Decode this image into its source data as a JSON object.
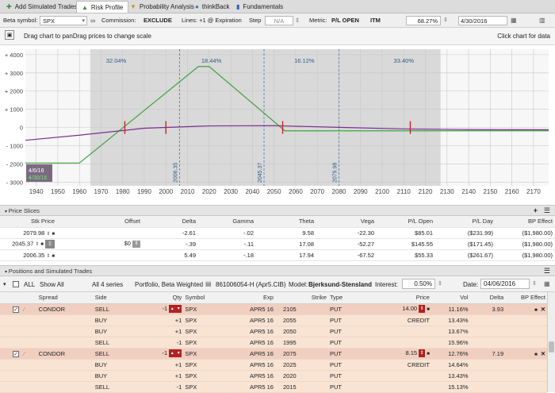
{
  "tabs": [
    {
      "label": "Add Simulated Trades",
      "icon": "plus-icon"
    },
    {
      "label": "Risk Profile",
      "icon": "risk-icon"
    },
    {
      "label": "Probability Analysis",
      "icon": "probability-icon"
    },
    {
      "label": "thinkBack",
      "icon": "thinkback-icon"
    },
    {
      "label": "Fundamentals",
      "icon": "fundamentals-icon"
    }
  ],
  "toolbar": {
    "beta_label": "Beta symbol:",
    "beta_value": "SPX",
    "commission_label": "Commission:",
    "commission_value": "EXCLUDE",
    "lines_label": "Lines: +1 @ Expiration",
    "step_label": "Step",
    "step_value": "N/A",
    "metric_label": "Metric:",
    "metric_value": "P/L OPEN",
    "itm_label": "ITM",
    "pct_value": "68.27%",
    "date_value": "4/30/2016"
  },
  "header": {
    "hint": "Drag chart to panDrag prices to change scale",
    "click_hint": "Click chart for data"
  },
  "chart_data": {
    "type": "line",
    "x_ticks": [
      1940,
      1950,
      1960,
      1970,
      1980,
      1990,
      2000,
      2010,
      2020,
      2030,
      2040,
      2050,
      2060,
      2070,
      2080,
      2090,
      2100,
      2110,
      2120,
      2130,
      2140,
      2150,
      2160,
      2170
    ],
    "y_ticks": [
      4000,
      3000,
      2000,
      1000,
      0,
      -1000,
      -2000,
      -3000
    ],
    "y_tick_labels": [
      "+ 4000",
      "+ 3000",
      "+ 2000",
      "+ 1000",
      "0",
      "- 1000",
      "- 2000",
      "- 3000"
    ],
    "xlim": [
      1935,
      2177
    ],
    "ylim": [
      -3200,
      4300
    ],
    "shade_range": [
      1965,
      2127
    ],
    "band_pcts": [
      {
        "x": 1977,
        "label": "32.04%"
      },
      {
        "x": 2021,
        "label": "18.44%"
      },
      {
        "x": 2064,
        "label": "16.12%"
      },
      {
        "x": 2110,
        "label": "33.40%"
      }
    ],
    "vlines": [
      {
        "x": 2006.35,
        "label": "2006.35"
      },
      {
        "x": 2045.37,
        "label": "2045.37"
      },
      {
        "x": 2079.98,
        "label": "2079.98"
      }
    ],
    "red_markers": [
      1981,
      2000,
      2054,
      2113
    ],
    "series": [
      {
        "color": "#3fa33f",
        "x": [
          1935,
          1960,
          2015,
          2020,
          2055,
          2177
        ],
        "y": [
          -1950,
          -1950,
          3350,
          3350,
          -180,
          -180
        ]
      },
      {
        "color": "#7a2d8f",
        "x": [
          1935,
          1960,
          1990,
          2020,
          2050,
          2080,
          2110,
          2140,
          2177
        ],
        "y": [
          -700,
          -420,
          -40,
          90,
          100,
          10,
          -80,
          -110,
          -120
        ]
      }
    ],
    "date_labels": [
      "4/6/16",
      "4/30/16"
    ]
  },
  "slices": {
    "title": "Price Slices",
    "columns": [
      "Stk Price",
      "Offset",
      "Delta",
      "Gamma",
      "Theta",
      "Vega",
      "P/L Open",
      "P/L Day",
      "BP Effect"
    ],
    "rows": [
      {
        "price": "2079.98",
        "offset": "",
        "delta": "-2.61",
        "gamma": "-.02",
        "theta": "9.58",
        "vega": "-22.30",
        "plopen": "$85.01",
        "plday": "($231.99)",
        "bp": "($1,980.00)"
      },
      {
        "price": "2045.37",
        "offset": "$0",
        "delta": "-.39",
        "gamma": "-.11",
        "theta": "17.08",
        "vega": "-52.27",
        "plopen": "$145.55",
        "plday": "($171.45)",
        "bp": "($1,980.00)"
      },
      {
        "price": "2006.35",
        "offset": "",
        "delta": "5.49",
        "gamma": "-.18",
        "theta": "17.94",
        "vega": "-67.52",
        "plopen": "$55.33",
        "plday": "($261.67)",
        "bp": "($1,980.00)"
      }
    ]
  },
  "positions": {
    "title": "Positions and Simulated Trades",
    "all_label": "ALL",
    "show_all": "Show All",
    "series_label": "All 4 series",
    "portfolio": "Portfolio, Beta Weighted",
    "account": "861006054-H (Apr5.CIB)",
    "model_label": "Model:",
    "model_value": "Bjerksund-Stensland",
    "interest_label": "Interest:",
    "interest_value": "0.50%",
    "date_label": "Date:",
    "date_value": "04/06/2016",
    "columns": [
      "Spread",
      "Side",
      "Qty",
      "Symbol",
      "Exp",
      "Strike",
      "Type",
      "Price",
      "Vol",
      "Delta",
      "BP Effect"
    ],
    "rows": [
      {
        "head": true,
        "spread": "CONDOR",
        "side": "SELL",
        "qty": "-1",
        "symbol": "SPX",
        "exp": "APR5 16",
        "strike": "2105",
        "type": "PUT",
        "price": "14.00",
        "vol": "11.16%",
        "delta": "3.93",
        "bp": ""
      },
      {
        "head": false,
        "spread": "",
        "side": "BUY",
        "qty": "+1",
        "symbol": "SPX",
        "exp": "APR5 16",
        "strike": "2055",
        "type": "PUT",
        "price": "CREDIT",
        "vol": "13.43%",
        "delta": "",
        "bp": ""
      },
      {
        "head": false,
        "spread": "",
        "side": "BUY",
        "qty": "+1",
        "symbol": "SPX",
        "exp": "APR5 16",
        "strike": "2050",
        "type": "PUT",
        "price": "",
        "vol": "13.67%",
        "delta": "",
        "bp": ""
      },
      {
        "head": false,
        "spread": "",
        "side": "SELL",
        "qty": "-1",
        "symbol": "SPX",
        "exp": "APR5 16",
        "strike": "1995",
        "type": "PUT",
        "price": "",
        "vol": "15.96%",
        "delta": "",
        "bp": ""
      },
      {
        "head": true,
        "spread": "CONDOR",
        "side": "SELL",
        "qty": "-1",
        "symbol": "SPX",
        "exp": "APR5 16",
        "strike": "2075",
        "type": "PUT",
        "price": "8.15",
        "vol": "12.76%",
        "delta": "7.19",
        "bp": ""
      },
      {
        "head": false,
        "spread": "",
        "side": "BUY",
        "qty": "+1",
        "symbol": "SPX",
        "exp": "APR5 16",
        "strike": "2025",
        "type": "PUT",
        "price": "CREDIT",
        "vol": "14.64%",
        "delta": "",
        "bp": ""
      },
      {
        "head": false,
        "spread": "",
        "side": "BUY",
        "qty": "+1",
        "symbol": "SPX",
        "exp": "APR5 16",
        "strike": "2020",
        "type": "PUT",
        "price": "",
        "vol": "13.43%",
        "delta": "",
        "bp": ""
      },
      {
        "head": false,
        "spread": "",
        "side": "SELL",
        "qty": "-1",
        "symbol": "SPX",
        "exp": "APR5 16",
        "strike": "2015",
        "type": "PUT",
        "price": "",
        "vol": "15.13%",
        "delta": "",
        "bp": ""
      }
    ]
  }
}
